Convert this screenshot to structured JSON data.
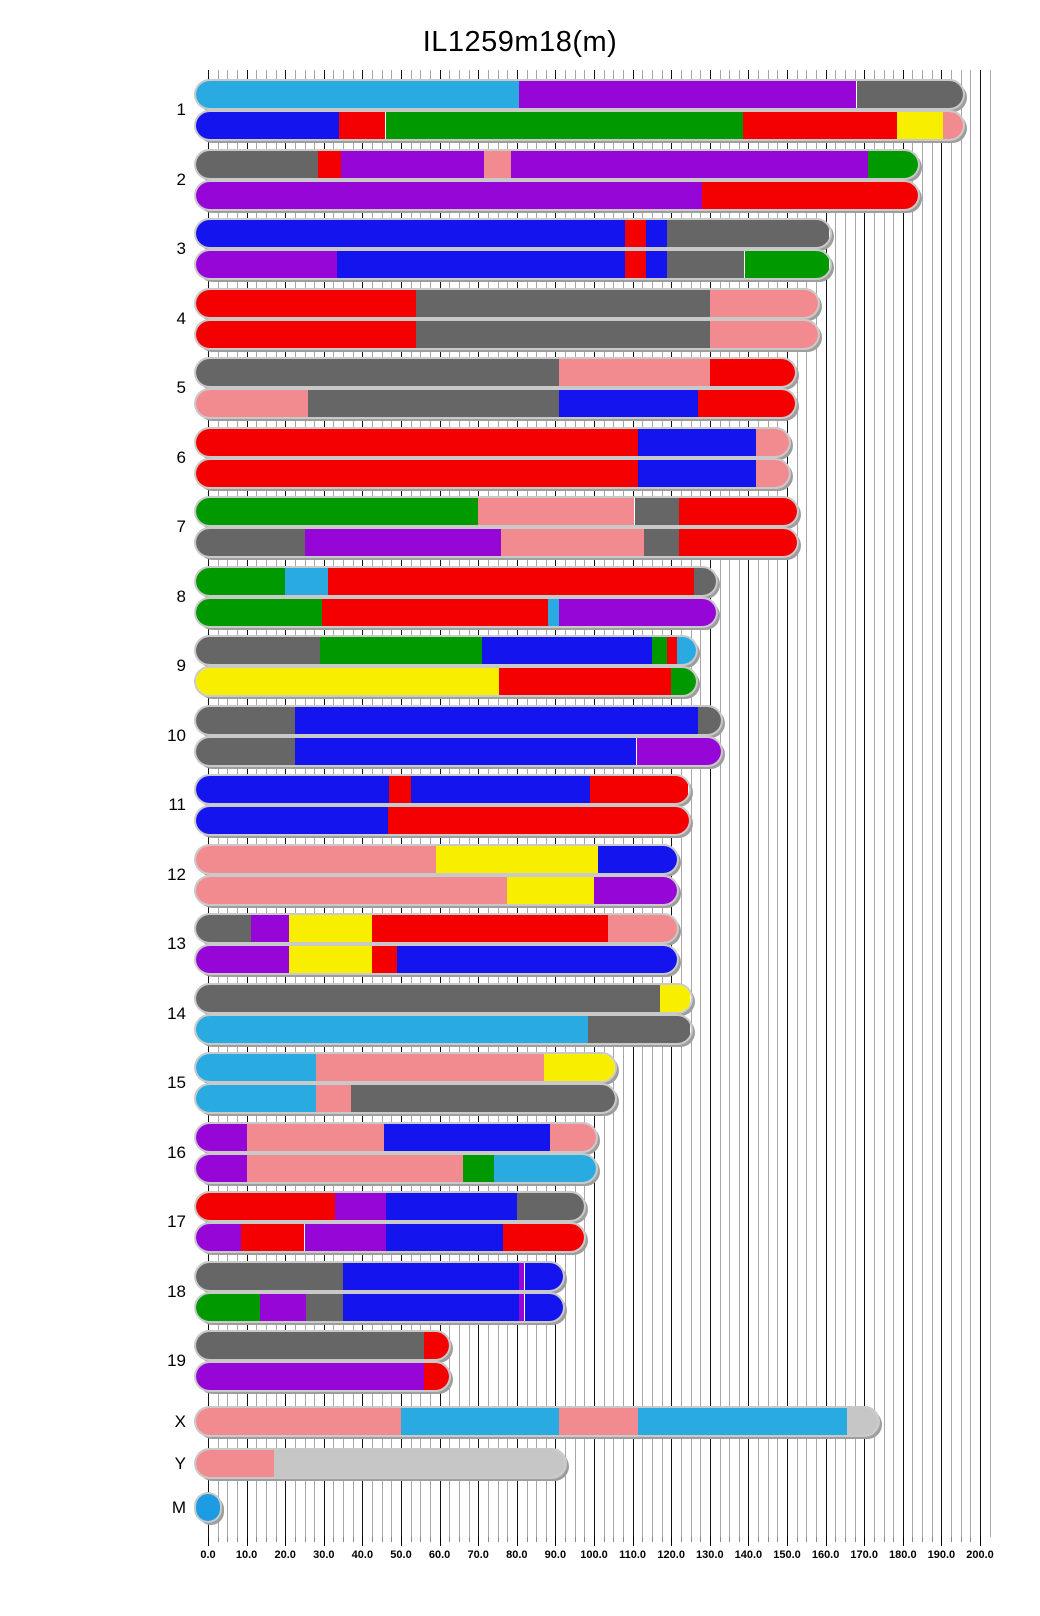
{
  "chart_data": {
    "type": "bar",
    "variant": "horizontal-stacked-chromosome-ideogram",
    "title": "IL1259m18(m)",
    "xlabel": "",
    "ylabel": "",
    "x_axis": {
      "min": 0,
      "max": 200,
      "major_step": 10,
      "minor_step": 2.5,
      "tick_labels": [
        "0.0",
        "10.0",
        "20.0",
        "30.0",
        "40.0",
        "50.0",
        "60.0",
        "70.0",
        "80.0",
        "90.0",
        "100.0",
        "110.0",
        "120.0",
        "130.0",
        "140.0",
        "150.0",
        "160.0",
        "170.0",
        "180.0",
        "190.0",
        "200.0"
      ]
    },
    "legend": null,
    "grid": true,
    "palette": {
      "C": "#29ABE2",
      "B": "#1414EE",
      "R": "#F40000",
      "G": "#009900",
      "P": "#9506D7",
      "D": "#666666",
      "L": "#C6C6C6",
      "K": "#F28B90",
      "Y": "#F8EF00",
      "M": "#1E9CE3"
    },
    "palette_names": {
      "C": "sky-blue",
      "B": "blue",
      "R": "red",
      "G": "green",
      "P": "purple",
      "D": "dark-gray",
      "L": "light-gray",
      "K": "salmon-pink",
      "Y": "yellow",
      "M": "dot-blue"
    },
    "chromosomes": [
      {
        "name": "1",
        "length": 195.5,
        "tracks": [
          [
            [
              "C",
              0,
              80.5
            ],
            [
              "P",
              80.5,
              168
            ],
            [
              "D",
              168,
              195.5
            ]
          ],
          [
            [
              "B",
              0,
              34
            ],
            [
              "R",
              34,
              46
            ],
            [
              "G",
              46,
              138.5
            ],
            [
              "R",
              138.5,
              178.5
            ],
            [
              "Y",
              178.5,
              190.5
            ],
            [
              "K",
              190.5,
              195.5
            ]
          ]
        ]
      },
      {
        "name": "2",
        "length": 184,
        "tracks": [
          [
            [
              "D",
              0,
              28.5
            ],
            [
              "R",
              28.5,
              34.5
            ],
            [
              "P",
              34.5,
              71.5
            ],
            [
              "K",
              71.5,
              78.5
            ],
            [
              "P",
              78.5,
              171
            ],
            [
              "G",
              171,
              184
            ]
          ],
          [
            [
              "P",
              0,
              128
            ],
            [
              "R",
              128,
              184
            ]
          ]
        ]
      },
      {
        "name": "3",
        "length": 161,
        "tracks": [
          [
            [
              "B",
              0,
              108
            ],
            [
              "R",
              108,
              113.5
            ],
            [
              "B",
              113.5,
              119
            ],
            [
              "D",
              119,
              161
            ]
          ],
          [
            [
              "P",
              0,
              33.5
            ],
            [
              "B",
              33.5,
              108
            ],
            [
              "R",
              108,
              113.5
            ],
            [
              "B",
              113.5,
              119
            ],
            [
              "D",
              119,
              139
            ],
            [
              "G",
              139,
              161
            ]
          ]
        ]
      },
      {
        "name": "4",
        "length": 158,
        "tracks": [
          [
            [
              "R",
              0,
              54
            ],
            [
              "D",
              54,
              130
            ],
            [
              "K",
              130,
              158
            ]
          ],
          [
            [
              "R",
              0,
              54
            ],
            [
              "D",
              54,
              130
            ],
            [
              "K",
              130,
              158
            ]
          ]
        ]
      },
      {
        "name": "5",
        "length": 152,
        "tracks": [
          [
            [
              "D",
              0,
              91
            ],
            [
              "K",
              91,
              130
            ],
            [
              "R",
              130,
              152
            ]
          ],
          [
            [
              "K",
              0,
              26
            ],
            [
              "D",
              26,
              91
            ],
            [
              "B",
              91,
              127
            ],
            [
              "R",
              127,
              152
            ]
          ]
        ]
      },
      {
        "name": "6",
        "length": 150.5,
        "tracks": [
          [
            [
              "R",
              0,
              111.5
            ],
            [
              "B",
              111.5,
              142
            ],
            [
              "K",
              142,
              150.5
            ]
          ],
          [
            [
              "R",
              0,
              111.5
            ],
            [
              "B",
              111.5,
              142
            ],
            [
              "K",
              142,
              150.5
            ]
          ]
        ]
      },
      {
        "name": "7",
        "length": 152.5,
        "tracks": [
          [
            [
              "G",
              0,
              70
            ],
            [
              "K",
              70,
              110.5
            ],
            [
              "D",
              110.5,
              122
            ],
            [
              "R",
              122,
              152.5
            ]
          ],
          [
            [
              "D",
              0,
              25
            ],
            [
              "P",
              25,
              76
            ],
            [
              "K",
              76,
              113
            ],
            [
              "D",
              113,
              122
            ],
            [
              "R",
              122,
              152.5
            ]
          ]
        ]
      },
      {
        "name": "8",
        "length": 131.5,
        "tracks": [
          [
            [
              "G",
              0,
              20
            ],
            [
              "C",
              20,
              31
            ],
            [
              "R",
              31,
              126
            ],
            [
              "D",
              126,
              131.5
            ]
          ],
          [
            [
              "G",
              0,
              29.5
            ],
            [
              "R",
              29.5,
              88
            ],
            [
              "C",
              88,
              91
            ],
            [
              "P",
              91,
              131.5
            ]
          ]
        ]
      },
      {
        "name": "9",
        "length": 126.5,
        "tracks": [
          [
            [
              "D",
              0,
              29
            ],
            [
              "G",
              29,
              71
            ],
            [
              "B",
              71,
              115
            ],
            [
              "G",
              115,
              119
            ],
            [
              "R",
              119,
              121.5
            ],
            [
              "C",
              121.5,
              126.5
            ]
          ],
          [
            [
              "Y",
              0,
              75.5
            ],
            [
              "R",
              75.5,
              120
            ],
            [
              "G",
              120,
              126.5
            ]
          ]
        ]
      },
      {
        "name": "10",
        "length": 133,
        "tracks": [
          [
            [
              "D",
              0,
              22.5
            ],
            [
              "B",
              22.5,
              127
            ],
            [
              "D",
              127,
              133
            ]
          ],
          [
            [
              "D",
              0,
              22.5
            ],
            [
              "B",
              22.5,
              111
            ],
            [
              "P",
              111,
              133
            ]
          ]
        ]
      },
      {
        "name": "11",
        "length": 124.5,
        "tracks": [
          [
            [
              "B",
              0,
              47
            ],
            [
              "R",
              47,
              52.5
            ],
            [
              "B",
              52.5,
              99
            ],
            [
              "R",
              99,
              124.5
            ]
          ],
          [
            [
              "B",
              0,
              46.5
            ],
            [
              "R",
              46.5,
              124.5
            ]
          ]
        ]
      },
      {
        "name": "12",
        "length": 121.5,
        "tracks": [
          [
            [
              "K",
              0,
              59
            ],
            [
              "Y",
              59,
              101
            ],
            [
              "B",
              101,
              121.5
            ]
          ],
          [
            [
              "K",
              0,
              77.5
            ],
            [
              "Y",
              77.5,
              100
            ],
            [
              "P",
              100,
              121.5
            ]
          ]
        ]
      },
      {
        "name": "13",
        "length": 121.5,
        "tracks": [
          [
            [
              "D",
              0,
              11
            ],
            [
              "P",
              11,
              21
            ],
            [
              "Y",
              21,
              42.5
            ],
            [
              "R",
              42.5,
              103.5
            ],
            [
              "K",
              103.5,
              121.5
            ]
          ],
          [
            [
              "P",
              0,
              21
            ],
            [
              "Y",
              21,
              42.5
            ],
            [
              "R",
              42.5,
              49
            ],
            [
              "B",
              49,
              121.5
            ]
          ]
        ]
      },
      {
        "name": "14",
        "length": 125,
        "tracks": [
          [
            [
              "D",
              0,
              117
            ],
            [
              "Y",
              117,
              125
            ]
          ],
          [
            [
              "C",
              0,
              98.5
            ],
            [
              "D",
              98.5,
              125
            ]
          ]
        ]
      },
      {
        "name": "15",
        "length": 105.5,
        "tracks": [
          [
            [
              "C",
              0,
              28
            ],
            [
              "K",
              28,
              87
            ],
            [
              "Y",
              87,
              105.5
            ]
          ],
          [
            [
              "C",
              0,
              28
            ],
            [
              "K",
              28,
              37
            ],
            [
              "D",
              37,
              105.5
            ]
          ]
        ]
      },
      {
        "name": "16",
        "length": 100.5,
        "tracks": [
          [
            [
              "P",
              0,
              10
            ],
            [
              "K",
              10,
              45.5
            ],
            [
              "B",
              45.5,
              88.5
            ],
            [
              "K",
              88.5,
              100.5
            ]
          ],
          [
            [
              "P",
              0,
              10
            ],
            [
              "K",
              10,
              66
            ],
            [
              "G",
              66,
              74
            ],
            [
              "C",
              74,
              100.5
            ]
          ]
        ]
      },
      {
        "name": "17",
        "length": 97.5,
        "tracks": [
          [
            [
              "R",
              0,
              33
            ],
            [
              "P",
              33,
              46
            ],
            [
              "B",
              46,
              80
            ],
            [
              "D",
              80,
              97.5
            ]
          ],
          [
            [
              "P",
              0,
              8.5
            ],
            [
              "R",
              8.5,
              25
            ],
            [
              "P",
              25,
              46
            ],
            [
              "B",
              46,
              76.5
            ],
            [
              "R",
              76.5,
              97.5
            ]
          ]
        ]
      },
      {
        "name": "18",
        "length": 92,
        "tracks": [
          [
            [
              "D",
              0,
              35
            ],
            [
              "B",
              35,
              80.5
            ],
            [
              "P",
              80.5,
              82
            ],
            [
              "B",
              82,
              92
            ]
          ],
          [
            [
              "G",
              0,
              13.5
            ],
            [
              "P",
              13.5,
              25.5
            ],
            [
              "D",
              25.5,
              35
            ],
            [
              "B",
              35,
              80.5
            ],
            [
              "P",
              80.5,
              82
            ],
            [
              "B",
              82,
              92
            ]
          ]
        ]
      },
      {
        "name": "19",
        "length": 62.5,
        "tracks": [
          [
            [
              "D",
              0,
              56
            ],
            [
              "R",
              56,
              62.5
            ]
          ],
          [
            [
              "P",
              0,
              56
            ],
            [
              "R",
              56,
              62.5
            ]
          ]
        ]
      },
      {
        "name": "X",
        "length": 173.5,
        "tracks": [
          [
            [
              "K",
              0,
              50
            ],
            [
              "C",
              50,
              91
            ],
            [
              "K",
              91,
              111.5
            ],
            [
              "C",
              111.5,
              165.5
            ],
            [
              "L",
              165.5,
              173.5
            ]
          ]
        ]
      },
      {
        "name": "Y",
        "length": 92.5,
        "tracks": [
          [
            [
              "K",
              0,
              17
            ],
            [
              "L",
              17,
              92.5
            ]
          ]
        ]
      },
      {
        "name": "M",
        "length": 3,
        "tracks": [
          [
            [
              "M",
              0,
              3
            ]
          ]
        ]
      }
    ]
  }
}
